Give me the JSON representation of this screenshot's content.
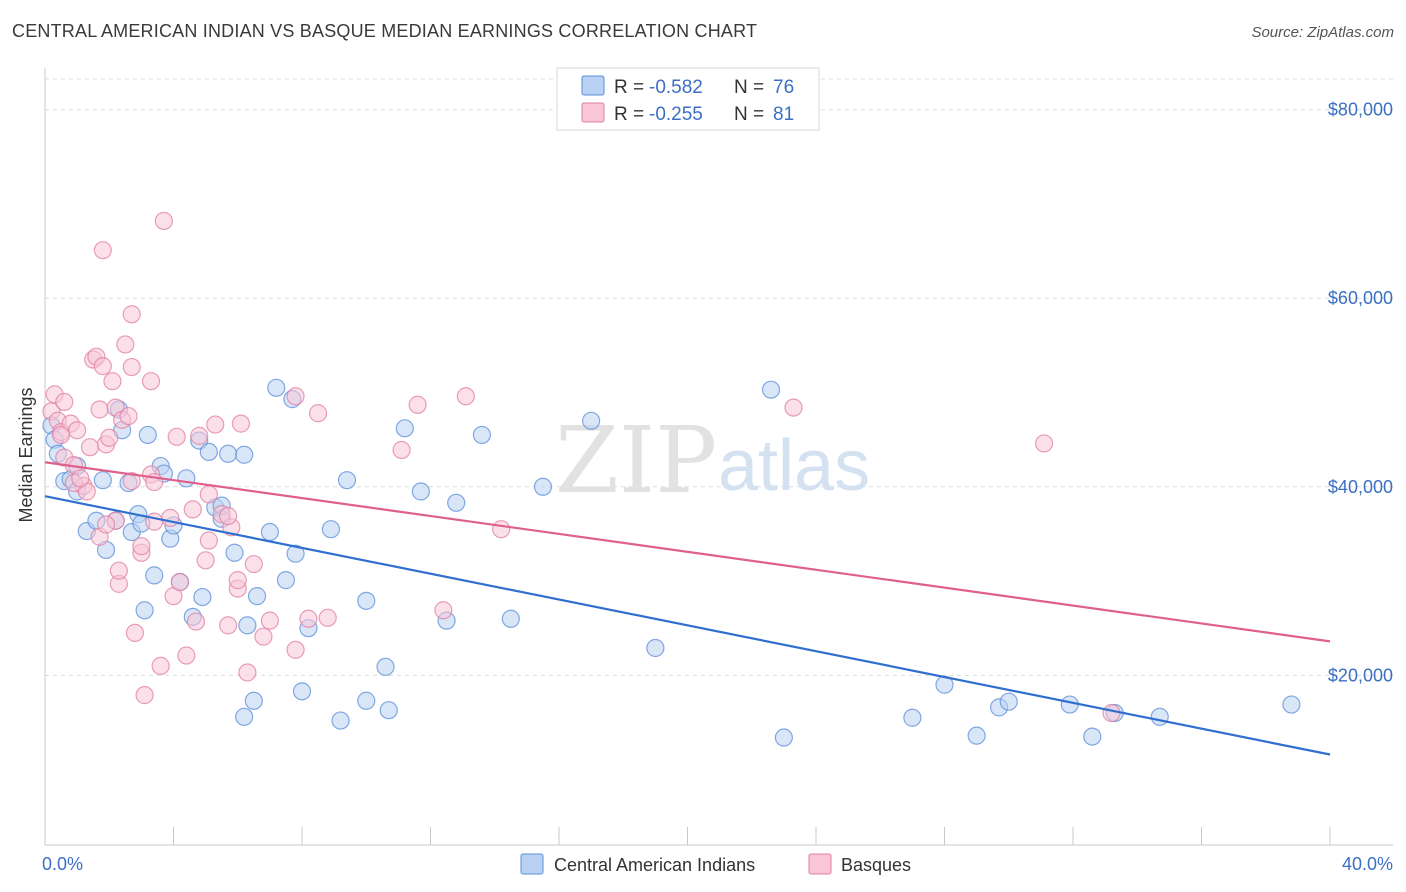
{
  "title": "CENTRAL AMERICAN INDIAN VS BASQUE MEDIAN EARNINGS CORRELATION CHART",
  "source": "Source: ZipAtlas.com",
  "watermark": {
    "zip": "ZIP",
    "atlas": "atlas"
  },
  "chart_data": {
    "type": "scatter",
    "xlabel": "",
    "ylabel": "Median Earnings",
    "xlim": [
      0,
      40
    ],
    "ylim": [
      2000,
      84000
    ],
    "x_ticks": [
      0,
      4,
      8,
      12,
      16,
      20,
      24,
      28,
      32,
      36,
      40
    ],
    "x_tick_labels": [
      {
        "value": 0,
        "label": "0.0%"
      },
      {
        "value": 40,
        "label": "40.0%"
      }
    ],
    "y_ticks": [
      {
        "value": 20000,
        "label": "$20,000"
      },
      {
        "value": 40000,
        "label": "$40,000"
      },
      {
        "value": 60000,
        "label": "$60,000"
      },
      {
        "value": 80000,
        "label": "$80,000"
      }
    ],
    "grid": "horizontal dashed",
    "legend": {
      "placement": "top-center",
      "entries": [
        {
          "r_label": "R = ",
          "r": "-0.582",
          "n_label": "N = ",
          "n": "76"
        },
        {
          "r_label": "R = ",
          "r": "-0.255",
          "n_label": "N = ",
          "n": "81"
        }
      ]
    },
    "series": [
      {
        "name": "Central American Indians",
        "color": "#5b8ed8",
        "fill": "#b9d1f2",
        "trend": {
          "x0": 0,
          "y0": 39000,
          "x1": 40,
          "y1": 11600
        },
        "points": [
          [
            0.2,
            46500
          ],
          [
            0.3,
            45000
          ],
          [
            0.4,
            43500
          ],
          [
            0.6,
            40600
          ],
          [
            0.8,
            40800
          ],
          [
            1.0,
            42200
          ],
          [
            1.0,
            39500
          ],
          [
            1.3,
            35300
          ],
          [
            1.6,
            36400
          ],
          [
            1.8,
            40700
          ],
          [
            1.9,
            33300
          ],
          [
            2.2,
            36400
          ],
          [
            2.3,
            48200
          ],
          [
            2.4,
            46000
          ],
          [
            2.6,
            40400
          ],
          [
            2.7,
            35200
          ],
          [
            2.9,
            37100
          ],
          [
            3.1,
            26900
          ],
          [
            3.2,
            45500
          ],
          [
            3.4,
            30600
          ],
          [
            3.6,
            42200
          ],
          [
            3.7,
            41400
          ],
          [
            3.9,
            34500
          ],
          [
            4.0,
            35900
          ],
          [
            4.2,
            29900
          ],
          [
            4.4,
            40900
          ],
          [
            4.6,
            26200
          ],
          [
            4.8,
            44900
          ],
          [
            4.9,
            28300
          ],
          [
            5.1,
            43700
          ],
          [
            5.3,
            37800
          ],
          [
            5.5,
            36600
          ],
          [
            5.7,
            43500
          ],
          [
            5.9,
            33000
          ],
          [
            6.2,
            43400
          ],
          [
            6.3,
            25300
          ],
          [
            6.5,
            17300
          ],
          [
            6.6,
            28400
          ],
          [
            6.2,
            15600
          ],
          [
            7.0,
            35200
          ],
          [
            7.2,
            50500
          ],
          [
            7.5,
            30100
          ],
          [
            7.7,
            49300
          ],
          [
            7.8,
            32900
          ],
          [
            8.0,
            18300
          ],
          [
            8.2,
            25000
          ],
          [
            8.9,
            35500
          ],
          [
            9.2,
            15200
          ],
          [
            9.4,
            40700
          ],
          [
            10.0,
            27900
          ],
          [
            10.0,
            17300
          ],
          [
            10.6,
            20900
          ],
          [
            10.7,
            16300
          ],
          [
            11.2,
            46200
          ],
          [
            11.7,
            39500
          ],
          [
            12.5,
            25800
          ],
          [
            12.8,
            38300
          ],
          [
            13.6,
            45500
          ],
          [
            14.5,
            26000
          ],
          [
            15.5,
            40000
          ],
          [
            17.0,
            47000
          ],
          [
            19.0,
            22900
          ],
          [
            22.6,
            50300
          ],
          [
            23.0,
            13400
          ],
          [
            27.0,
            15500
          ],
          [
            28.0,
            19000
          ],
          [
            29.0,
            13600
          ],
          [
            29.7,
            16600
          ],
          [
            30.0,
            17200
          ],
          [
            31.9,
            16900
          ],
          [
            32.6,
            13500
          ],
          [
            33.3,
            16000
          ],
          [
            34.7,
            15600
          ],
          [
            38.8,
            16900
          ],
          [
            3.0,
            36100
          ],
          [
            5.5,
            38000
          ]
        ]
      },
      {
        "name": "Basques",
        "color": "#e07fa1",
        "fill": "#f8c6d7",
        "trend": {
          "x0": 0,
          "y0": 42600,
          "x1": 40,
          "y1": 23600
        },
        "points": [
          [
            0.2,
            48000
          ],
          [
            0.3,
            49800
          ],
          [
            0.4,
            47000
          ],
          [
            0.5,
            45800
          ],
          [
            0.6,
            49000
          ],
          [
            0.6,
            43100
          ],
          [
            0.8,
            46700
          ],
          [
            0.9,
            42300
          ],
          [
            1.0,
            46000
          ],
          [
            1.2,
            40100
          ],
          [
            1.3,
            39500
          ],
          [
            1.4,
            44200
          ],
          [
            1.5,
            53500
          ],
          [
            1.6,
            53800
          ],
          [
            1.7,
            48200
          ],
          [
            1.7,
            34700
          ],
          [
            1.8,
            52800
          ],
          [
            1.9,
            44500
          ],
          [
            2.0,
            45200
          ],
          [
            2.1,
            51200
          ],
          [
            2.2,
            48400
          ],
          [
            2.2,
            36400
          ],
          [
            2.3,
            29700
          ],
          [
            2.3,
            31100
          ],
          [
            2.4,
            47100
          ],
          [
            2.5,
            55100
          ],
          [
            2.6,
            47500
          ],
          [
            2.7,
            58300
          ],
          [
            2.7,
            52700
          ],
          [
            2.8,
            24500
          ],
          [
            3.0,
            33000
          ],
          [
            3.0,
            33700
          ],
          [
            3.1,
            17900
          ],
          [
            3.3,
            51200
          ],
          [
            3.3,
            41300
          ],
          [
            3.4,
            40500
          ],
          [
            3.6,
            21000
          ],
          [
            3.7,
            68200
          ],
          [
            3.9,
            36700
          ],
          [
            4.0,
            28400
          ],
          [
            4.1,
            45300
          ],
          [
            4.2,
            29900
          ],
          [
            4.4,
            22100
          ],
          [
            4.6,
            37600
          ],
          [
            4.8,
            45400
          ],
          [
            4.7,
            25700
          ],
          [
            5.0,
            32200
          ],
          [
            5.1,
            39200
          ],
          [
            5.1,
            34300
          ],
          [
            5.3,
            46600
          ],
          [
            5.5,
            37100
          ],
          [
            5.7,
            25300
          ],
          [
            5.8,
            35700
          ],
          [
            6.0,
            29200
          ],
          [
            6.0,
            30100
          ],
          [
            6.1,
            46700
          ],
          [
            6.3,
            20300
          ],
          [
            6.5,
            31800
          ],
          [
            6.8,
            24100
          ],
          [
            7.0,
            25800
          ],
          [
            7.8,
            22700
          ],
          [
            8.2,
            26000
          ],
          [
            8.5,
            47800
          ],
          [
            8.8,
            26100
          ],
          [
            7.8,
            49600
          ],
          [
            11.1,
            43900
          ],
          [
            11.6,
            48700
          ],
          [
            12.4,
            26900
          ],
          [
            13.1,
            49600
          ],
          [
            14.2,
            35500
          ],
          [
            23.3,
            48400
          ],
          [
            31.1,
            44600
          ],
          [
            33.2,
            16000
          ],
          [
            1.8,
            65100
          ],
          [
            0.9,
            40400
          ],
          [
            1.1,
            40900
          ],
          [
            2.7,
            40600
          ],
          [
            0.5,
            45500
          ],
          [
            1.9,
            36000
          ],
          [
            3.4,
            36300
          ],
          [
            5.7,
            36900
          ]
        ]
      }
    ]
  },
  "bottom_legend": [
    "Central American Indians",
    "Basques"
  ]
}
